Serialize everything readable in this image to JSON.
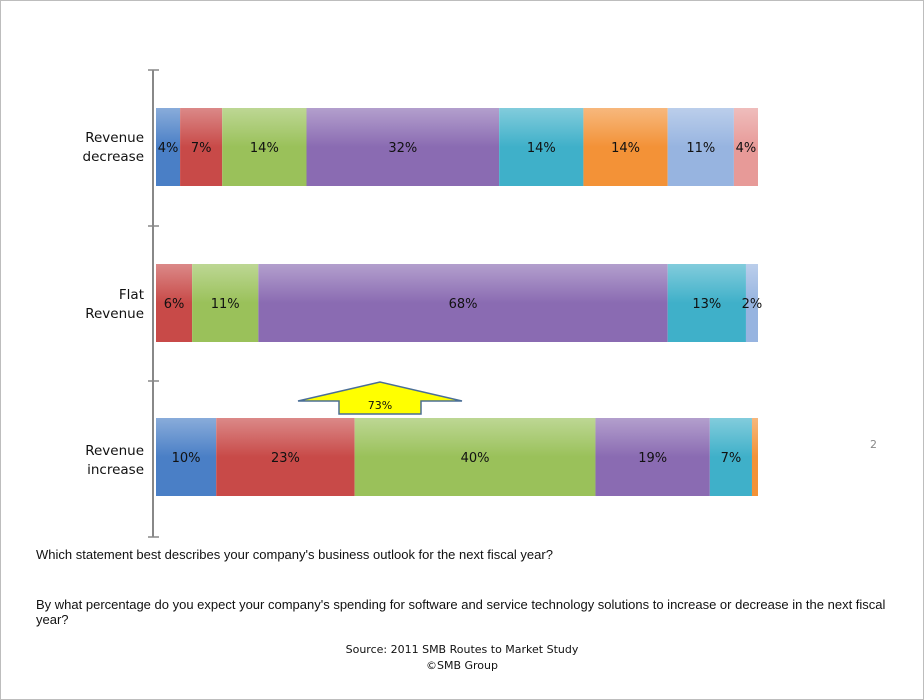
{
  "chart_data": {
    "type": "bar",
    "orientation": "horizontal",
    "stacked": true,
    "categories": [
      "Revenue decrease",
      "Flat Revenue",
      "Revenue increase"
    ],
    "rows": [
      {
        "category": "Revenue decrease",
        "segments": [
          {
            "value": 4,
            "label": "4%",
            "color": "#4a7fc6"
          },
          {
            "value": 7,
            "label": "7%",
            "color": "#c84a48"
          },
          {
            "value": 14,
            "label": "14%",
            "color": "#9ac15a"
          },
          {
            "value": 32,
            "label": "32%",
            "color": "#8a6bb2"
          },
          {
            "value": 14,
            "label": "14%",
            "color": "#3fb0c9"
          },
          {
            "value": 14,
            "label": "14%",
            "color": "#f39237"
          },
          {
            "value": 11,
            "label": "11%",
            "color": "#97b4e0"
          },
          {
            "value": 4,
            "label": "4%",
            "color": "#e79a98"
          }
        ]
      },
      {
        "category": "Flat Revenue",
        "segments": [
          {
            "value": 6,
            "label": "6%",
            "color": "#c84a48"
          },
          {
            "value": 11,
            "label": "11%",
            "color": "#9ac15a"
          },
          {
            "value": 68,
            "label": "68%",
            "color": "#8a6bb2"
          },
          {
            "value": 13,
            "label": "13%",
            "color": "#3fb0c9"
          },
          {
            "value": 2,
            "label": "2%",
            "color": "#97b4e0"
          }
        ]
      },
      {
        "category": "Revenue increase",
        "segments": [
          {
            "value": 10,
            "label": "10%",
            "color": "#4a7fc6"
          },
          {
            "value": 23,
            "label": "23%",
            "color": "#c84a48"
          },
          {
            "value": 40,
            "label": "40%",
            "color": "#9ac15a"
          },
          {
            "value": 19,
            "label": "19%",
            "color": "#8a6bb2"
          },
          {
            "value": 7,
            "label": "7%",
            "color": "#3fb0c9"
          },
          {
            "value": 1,
            "label": "1%",
            "color": "#f39237"
          }
        ]
      }
    ],
    "xlim": [
      0,
      100
    ],
    "legend": "none",
    "grid": false,
    "annotation": {
      "text": "73%",
      "shape": "up-arrow",
      "fill": "#ffff00",
      "outline": "#4a6e96"
    }
  },
  "category_labels": [
    "Revenue\ndecrease",
    "Flat\nRevenue",
    "Revenue\nincrease"
  ],
  "page_number": "2",
  "questions": {
    "q1": "Which statement best describes your company's business outlook for the next fiscal year?",
    "q2": "By what percentage do you expect your company's spending for software and service technology solutions to increase or decrease in the next fiscal year?"
  },
  "source": {
    "line1": "Source: 2011 SMB Routes to Market Study",
    "line2": "©SMB Group"
  }
}
